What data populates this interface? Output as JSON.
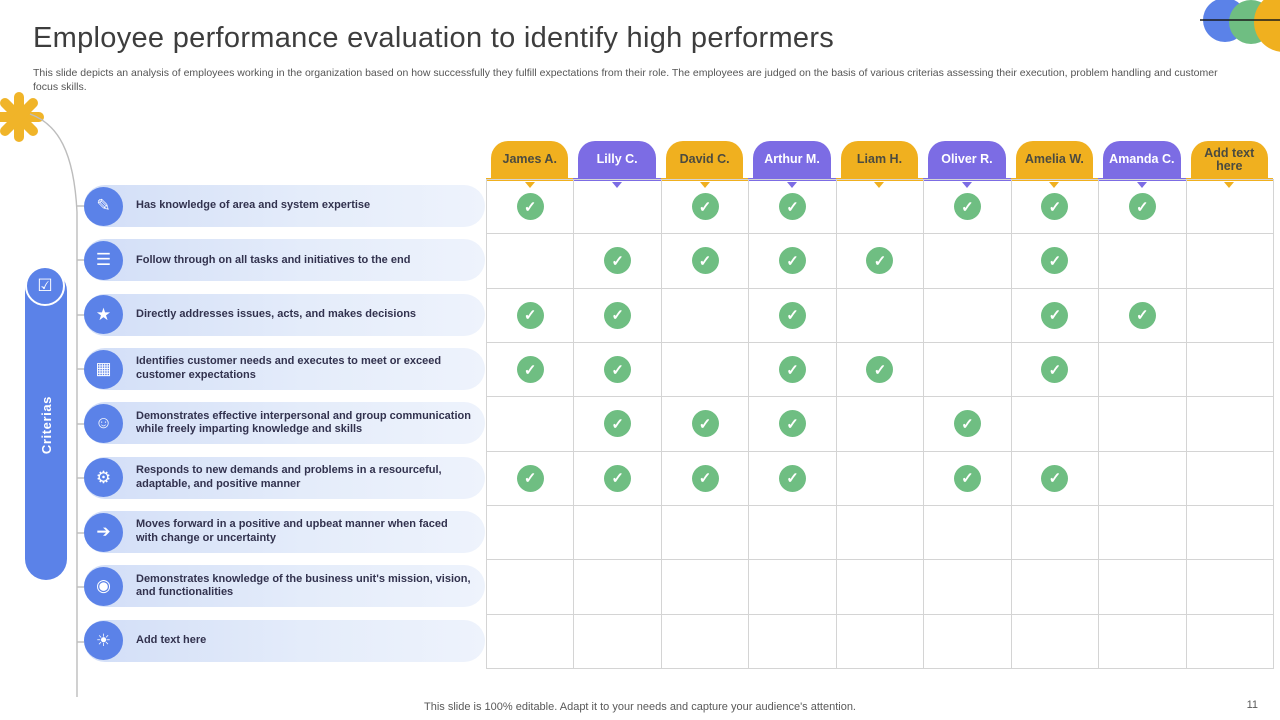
{
  "header": {
    "title": "Employee performance evaluation to identify high performers",
    "subtitle": "This slide depicts an analysis of employees working in the organization based on how successfully they fulfill expectations from their role. The employees are judged on the basis of various criterias assessing their execution, problem handling and customer focus skills."
  },
  "rail": {
    "label": "Criterias",
    "icon": "checklist-icon",
    "glyph": "☑"
  },
  "matrix": {
    "check_glyph": "✓",
    "columns": [
      {
        "label": "James A.",
        "color": "gold"
      },
      {
        "label": "Lilly C.",
        "color": "purple"
      },
      {
        "label": "David C.",
        "color": "gold"
      },
      {
        "label": "Arthur M.",
        "color": "purple"
      },
      {
        "label": "Liam H.",
        "color": "gold"
      },
      {
        "label": "Oliver R.",
        "color": "purple"
      },
      {
        "label": "Amelia W.",
        "color": "gold"
      },
      {
        "label": "Amanda C.",
        "color": "purple"
      },
      {
        "label": "Add text here",
        "color": "gold"
      }
    ],
    "criteria": [
      {
        "label": "Has knowledge of area and system expertise",
        "icon": "expertise-icon",
        "glyph": "✎",
        "checks": [
          1,
          0,
          1,
          1,
          0,
          1,
          1,
          1,
          0
        ]
      },
      {
        "label": "Follow through on all tasks and initiatives to the end",
        "icon": "tasks-icon",
        "glyph": "☰",
        "checks": [
          0,
          1,
          1,
          1,
          1,
          0,
          1,
          0,
          0
        ]
      },
      {
        "label": "Directly addresses issues, acts, and makes decisions",
        "icon": "decision-making-icon",
        "glyph": "★",
        "checks": [
          1,
          1,
          0,
          1,
          0,
          0,
          1,
          1,
          0
        ]
      },
      {
        "label": "Identifies customer needs and executes to meet or exceed customer expectations",
        "icon": "customer-needs-icon",
        "glyph": "▦",
        "checks": [
          1,
          1,
          0,
          1,
          1,
          0,
          1,
          0,
          0
        ]
      },
      {
        "label": "Demonstrates effective interpersonal and group communication while freely imparting knowledge and skills",
        "icon": "communication-icon",
        "glyph": "☺",
        "checks": [
          0,
          1,
          1,
          1,
          0,
          1,
          0,
          0,
          0
        ]
      },
      {
        "label": "Responds to new demands and problems in a resourceful, adaptable, and positive manner",
        "icon": "adaptability-icon",
        "glyph": "⚙",
        "checks": [
          1,
          1,
          1,
          1,
          0,
          1,
          1,
          0,
          0
        ]
      },
      {
        "label": "Moves forward in a positive and upbeat manner when faced with change or uncertainty",
        "icon": "positivity-icon",
        "glyph": "➔",
        "checks": [
          0,
          0,
          0,
          0,
          0,
          0,
          0,
          0,
          0
        ]
      },
      {
        "label": "Demonstrates knowledge of the business unit's mission, vision, and functionalities",
        "icon": "mission-vision-icon",
        "glyph": "◉",
        "checks": [
          0,
          0,
          0,
          0,
          0,
          0,
          0,
          0,
          0
        ]
      },
      {
        "label": "Add text here",
        "icon": "idea-icon",
        "glyph": "☀",
        "checks": [
          0,
          0,
          0,
          0,
          0,
          0,
          0,
          0,
          0
        ]
      }
    ]
  },
  "footer": {
    "note": "This slide is 100% editable. Adapt it to your needs and capture your audience's attention.",
    "page_number": "11"
  },
  "colors": {
    "gold": "#F0B01F",
    "purple": "#7C6CE4",
    "blue": "#5B82E8",
    "green": "#6FBE82"
  }
}
